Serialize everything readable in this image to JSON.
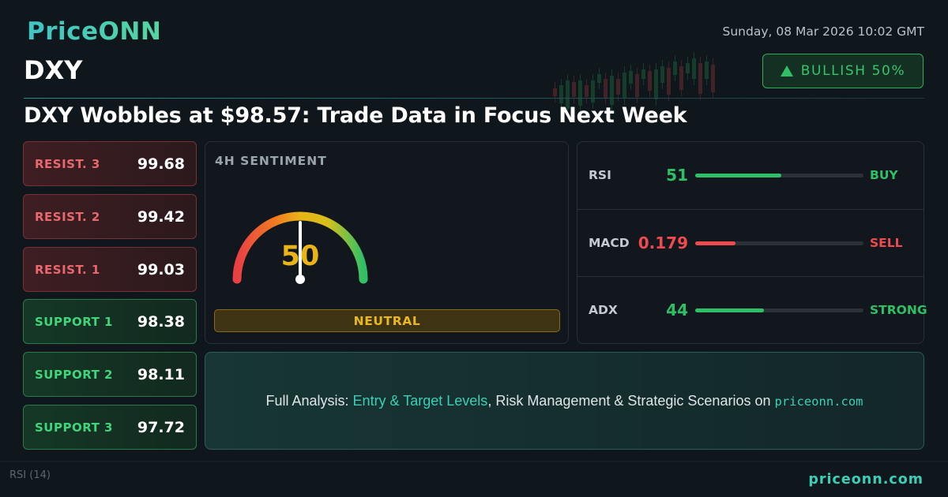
{
  "brand": {
    "logo_text": "PriceONN",
    "footer_url": "priceonn.com"
  },
  "datetime": "Sunday, 08 Mar 2026 10:02 GMT",
  "ticker": "DXY",
  "bias_badge": {
    "label": "BULLISH 50%",
    "color": "#2fc067",
    "icon": "triangle-up-icon"
  },
  "headline": "DXY Wobbles at $98.57: Trade Data in Focus Next Week",
  "levels": [
    {
      "label": "RESIST. 3",
      "value": "99.68",
      "type": "resistance"
    },
    {
      "label": "RESIST. 2",
      "value": "99.42",
      "type": "resistance"
    },
    {
      "label": "RESIST. 1",
      "value": "99.03",
      "type": "resistance"
    },
    {
      "label": "SUPPORT 1",
      "value": "98.38",
      "type": "support"
    },
    {
      "label": "SUPPORT 2",
      "value": "98.11",
      "type": "support"
    },
    {
      "label": "SUPPORT 3",
      "value": "97.72",
      "type": "support"
    }
  ],
  "sentiment": {
    "title": "4H SENTIMENT",
    "value": "50",
    "label": "NEUTRAL",
    "gauge_fraction": 0.5
  },
  "indicators": [
    {
      "name": "RSI",
      "value": "51",
      "signal": "BUY",
      "color": "#2fc067",
      "fill_fraction": 0.51
    },
    {
      "name": "MACD",
      "value": "0.179",
      "signal": "SELL",
      "color": "#ef4a4f",
      "fill_fraction": 0.24
    },
    {
      "name": "ADX",
      "value": "44",
      "signal": "STRONG",
      "color": "#2fc067",
      "fill_fraction": 0.41
    }
  ],
  "promo": {
    "prefix": "Full Analysis: ",
    "highlight": "Entry & Target Levels",
    "middle": ", Risk Management & Strategic Scenarios on ",
    "site": "priceonn.com"
  },
  "background": {
    "rsi_label": "RSI (14)"
  },
  "colors": {
    "accent": "#3ccfb7",
    "bullish": "#2fc067",
    "bearish": "#ef4a4f",
    "neutral": "#e8b416"
  }
}
